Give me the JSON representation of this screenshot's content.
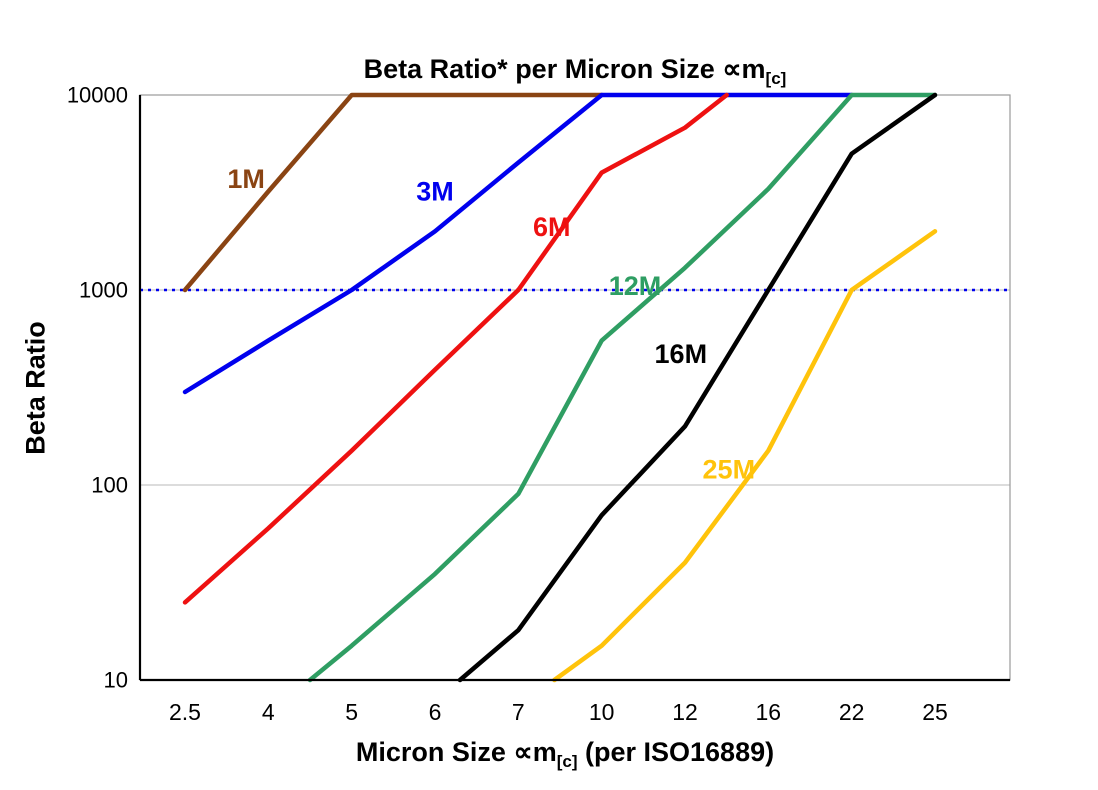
{
  "title": {
    "main": "Beta Ratio* per Micron Size ∝m",
    "sub": "[c]"
  },
  "axes": {
    "y": {
      "label": "Beta Ratio",
      "ticks": [
        "10",
        "100",
        "1000",
        "10000"
      ]
    },
    "x": {
      "label_main": "Micron Size ∝m",
      "label_sub": "[c]",
      "label_rest": " (per ISO16889)",
      "ticks": [
        "2.5",
        "4",
        "5",
        "6",
        "7",
        "10",
        "12",
        "16",
        "22",
        "25"
      ]
    }
  },
  "chart_data": {
    "type": "line",
    "title": "Beta Ratio* per Micron Size ∝m[c]",
    "xlabel": "Micron Size ∝m[c] (per ISO16889)",
    "ylabel": "Beta Ratio",
    "x_scale": "categorical",
    "y_scale": "log",
    "ylim": [
      10,
      10000
    ],
    "y_ticks": [
      10,
      100,
      1000,
      10000
    ],
    "categories": [
      2.5,
      4,
      5,
      6,
      7,
      10,
      12,
      16,
      22,
      25
    ],
    "grid": "horizontal-major",
    "ref_line": {
      "y": 1000,
      "color": "#0000ee",
      "style": "dotted"
    },
    "series": [
      {
        "name": "1M",
        "color": "#8a4413",
        "points": [
          [
            2.5,
            1000
          ],
          [
            4,
            3200
          ],
          [
            5,
            10000
          ],
          [
            10,
            10000
          ]
        ]
      },
      {
        "name": "3M",
        "color": "#0000ee",
        "points": [
          [
            2.5,
            300
          ],
          [
            4,
            550
          ],
          [
            5,
            1000
          ],
          [
            6,
            2000
          ],
          [
            7,
            4500
          ],
          [
            10,
            10000
          ],
          [
            22,
            10000
          ]
        ]
      },
      {
        "name": "6M",
        "color": "#ee1111",
        "points": [
          [
            2.5,
            25
          ],
          [
            4,
            60
          ],
          [
            5,
            150
          ],
          [
            6,
            390
          ],
          [
            7,
            1000
          ],
          [
            10,
            4000
          ],
          [
            12,
            6800
          ],
          [
            14,
            10000
          ]
        ]
      },
      {
        "name": "12M",
        "color": "#2f9e63",
        "points": [
          [
            4.5,
            10
          ],
          [
            5,
            15
          ],
          [
            6,
            35
          ],
          [
            7,
            90
          ],
          [
            10,
            550
          ],
          [
            12,
            1300
          ],
          [
            16,
            3300
          ],
          [
            22,
            10000
          ],
          [
            25,
            10000
          ]
        ]
      },
      {
        "name": "16M",
        "color": "#000000",
        "points": [
          [
            6.3,
            10
          ],
          [
            7,
            18
          ],
          [
            10,
            70
          ],
          [
            12,
            200
          ],
          [
            16,
            1000
          ],
          [
            22,
            5000
          ],
          [
            25,
            10000
          ]
        ]
      },
      {
        "name": "25M",
        "color": "#ffc30b",
        "points": [
          [
            8.3,
            10
          ],
          [
            10,
            15
          ],
          [
            12,
            40
          ],
          [
            16,
            150
          ],
          [
            22,
            1000
          ],
          [
            25,
            2000
          ]
        ]
      }
    ],
    "annotations": [
      {
        "text": "1M",
        "color": "#8a4413",
        "x": 3.6,
        "y": 3700
      },
      {
        "text": "3M",
        "color": "#0000ee",
        "x": 6.0,
        "y": 3200
      },
      {
        "text": "6M",
        "color": "#ee1111",
        "x": 8.2,
        "y": 2100
      },
      {
        "text": "12M",
        "color": "#2f9e63",
        "x": 10.8,
        "y": 1050
      },
      {
        "text": "16M",
        "color": "#000000",
        "x": 11.9,
        "y": 470
      },
      {
        "text": "25M",
        "color": "#ffc30b",
        "x": 14.1,
        "y": 120
      }
    ]
  }
}
